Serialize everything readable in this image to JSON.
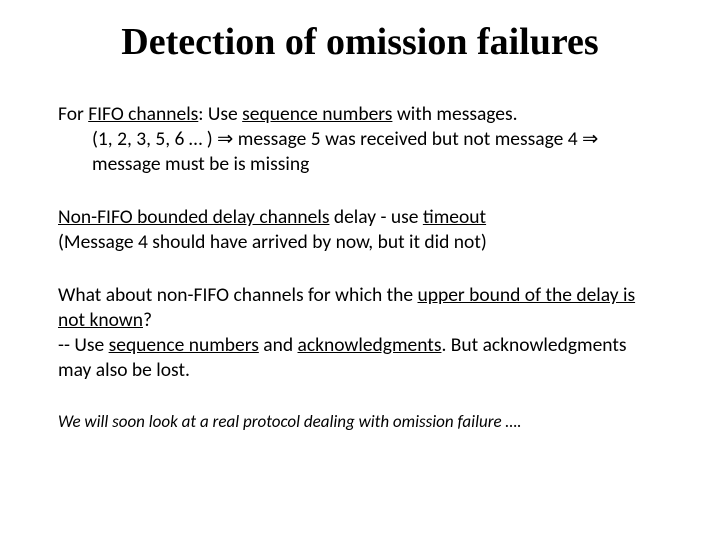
{
  "title": "Detection of omission failures",
  "p1_prefix": "For ",
  "p1_u1": "FIFO channels",
  "p1_mid1": ": Use ",
  "p1_u2": "sequence numbers",
  "p1_suffix": " with messages.",
  "p1_line2": "(1, 2, 3, 5, 6 … ) ⇒ message 5 was received but not message 4  ⇒ message must be is missing",
  "p2_u1": "Non-FIFO bounded delay channels",
  "p2_mid1": " delay - use ",
  "p2_u2": "timeout",
  "p2_line2": "(Message 4 should have arrived by now, but it did not)",
  "p3_prefix": "What about non-FIFO channels for which the ",
  "p3_u1": "upper bound of the delay is not known",
  "p3_suffix": "?",
  "p3_line2a": "-- Use ",
  "p3_u2": "sequence numbers",
  "p3_mid2": " and ",
  "p3_u3": "acknowledgments",
  "p3_line2b": ". But acknowledgments may also be lost.",
  "footer": "We will soon look at a real protocol dealing with omission failure ….",
  "colors": {
    "text": "#000000",
    "background": "#ffffff"
  },
  "fonts": {
    "title_family": "Times New Roman",
    "title_size_pt": 38,
    "title_weight": 700,
    "body_family": "Calibri",
    "body_size_pt": 19.5,
    "footer_size_pt": 17
  }
}
